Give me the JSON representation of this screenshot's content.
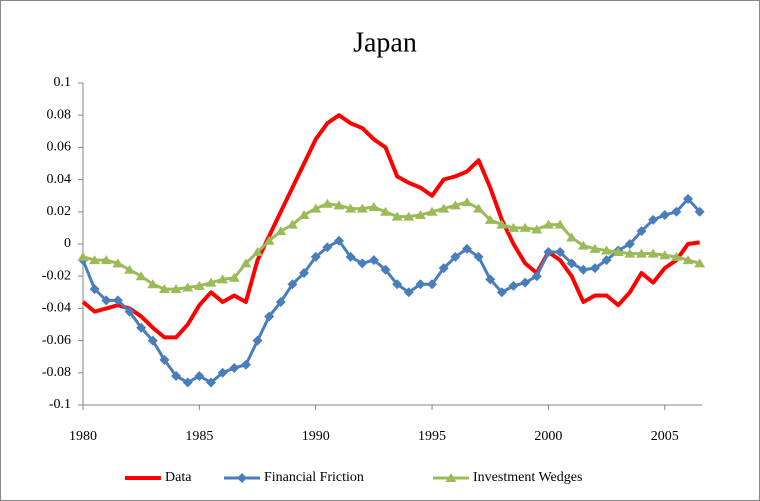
{
  "chart_data": {
    "type": "line",
    "title": "Japan",
    "x": [
      1980,
      1980.5,
      1981,
      1981.5,
      1982,
      1982.5,
      1983,
      1983.5,
      1984,
      1984.5,
      1985,
      1985.5,
      1986,
      1986.5,
      1987,
      1987.5,
      1988,
      1988.5,
      1989,
      1989.5,
      1990,
      1990.5,
      1991,
      1991.5,
      1992,
      1992.5,
      1993,
      1993.5,
      1994,
      1994.5,
      1995,
      1995.5,
      1996,
      1996.5,
      1997,
      1997.5,
      1998,
      1998.5,
      1999,
      1999.5,
      2000,
      2000.5,
      2001,
      2001.5,
      2002,
      2002.5,
      2003,
      2003.5,
      2004,
      2004.5,
      2005,
      2005.5,
      2006,
      2006.5
    ],
    "series": [
      {
        "name": "Data",
        "color": "#ff0000",
        "marker": "none",
        "values": [
          -0.036,
          -0.042,
          -0.04,
          -0.038,
          -0.04,
          -0.045,
          -0.052,
          -0.058,
          -0.058,
          -0.05,
          -0.038,
          -0.03,
          -0.036,
          -0.032,
          -0.036,
          -0.01,
          0.005,
          0.02,
          0.035,
          0.05,
          0.065,
          0.075,
          0.08,
          0.075,
          0.072,
          0.065,
          0.06,
          0.042,
          0.038,
          0.035,
          0.03,
          0.04,
          0.042,
          0.045,
          0.052,
          0.035,
          0.015,
          0.0,
          -0.012,
          -0.018,
          -0.005,
          -0.01,
          -0.02,
          -0.036,
          -0.032,
          -0.032,
          -0.038,
          -0.03,
          -0.018,
          -0.024,
          -0.015,
          -0.01,
          0.0,
          0.001
        ]
      },
      {
        "name": "Financial Friction",
        "color": "#4a7ebb",
        "marker": "diamond",
        "values": [
          -0.01,
          -0.028,
          -0.035,
          -0.035,
          -0.042,
          -0.052,
          -0.06,
          -0.072,
          -0.082,
          -0.086,
          -0.082,
          -0.086,
          -0.08,
          -0.077,
          -0.075,
          -0.06,
          -0.045,
          -0.036,
          -0.025,
          -0.018,
          -0.008,
          -0.002,
          0.002,
          -0.008,
          -0.012,
          -0.01,
          -0.016,
          -0.025,
          -0.03,
          -0.025,
          -0.025,
          -0.015,
          -0.008,
          -0.003,
          -0.008,
          -0.022,
          -0.03,
          -0.026,
          -0.024,
          -0.02,
          -0.005,
          -0.005,
          -0.012,
          -0.016,
          -0.015,
          -0.01,
          -0.004,
          0.0,
          0.008,
          0.015,
          0.018,
          0.02,
          0.028,
          0.02
        ]
      },
      {
        "name": "Investment Wedges",
        "color": "#9bbb59",
        "marker": "triangle",
        "values": [
          -0.008,
          -0.01,
          -0.01,
          -0.012,
          -0.016,
          -0.02,
          -0.025,
          -0.028,
          -0.028,
          -0.027,
          -0.026,
          -0.024,
          -0.022,
          -0.021,
          -0.012,
          -0.005,
          0.002,
          0.008,
          0.012,
          0.018,
          0.022,
          0.025,
          0.024,
          0.022,
          0.022,
          0.023,
          0.02,
          0.017,
          0.017,
          0.018,
          0.02,
          0.022,
          0.024,
          0.026,
          0.022,
          0.015,
          0.012,
          0.01,
          0.01,
          0.009,
          0.012,
          0.012,
          0.004,
          -0.001,
          -0.003,
          -0.004,
          -0.005,
          -0.006,
          -0.006,
          -0.006,
          -0.007,
          -0.008,
          -0.01,
          -0.012
        ]
      }
    ],
    "xlim": [
      1980,
      2006.6
    ],
    "xticks": [
      1980,
      1985,
      1990,
      1995,
      2000,
      2005
    ],
    "ylim": [
      -0.1,
      0.1
    ],
    "yticks": [
      0.1,
      0.08,
      0.06,
      0.04,
      0.02,
      0,
      -0.02,
      -0.04,
      -0.06,
      -0.08,
      -0.1
    ],
    "grid": false,
    "legend": "bottom"
  }
}
